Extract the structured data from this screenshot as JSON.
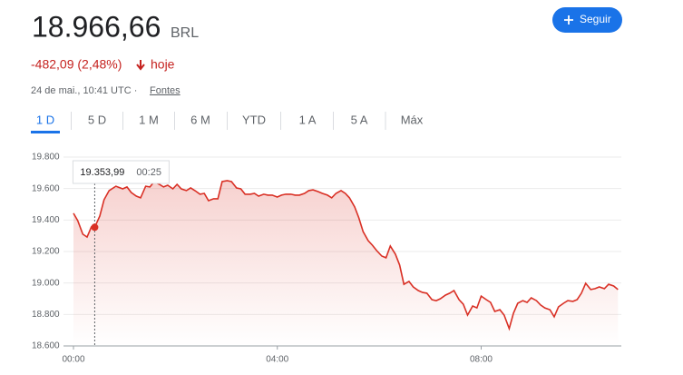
{
  "header": {
    "price": "18.966,66",
    "currency": "BRL",
    "change": "-482,09 (2,48%)",
    "period": "hoje",
    "timestamp": "24 de mai., 10:41 UTC ·",
    "sources": "Fontes",
    "follow": "Seguir"
  },
  "ranges": {
    "items": [
      "1 D",
      "5 D",
      "1 M",
      "6 M",
      "YTD",
      "1 A",
      "5 A",
      "Máx"
    ],
    "selected": "1 D"
  },
  "chart_data": {
    "type": "line",
    "x": [
      0,
      5,
      11,
      16,
      21,
      25,
      31,
      36,
      42,
      50,
      58,
      63,
      68,
      74,
      79,
      85,
      90,
      95,
      101,
      106,
      111,
      117,
      122,
      127,
      133,
      138,
      143,
      149,
      154,
      159,
      165,
      170,
      175,
      181,
      186,
      192,
      197,
      202,
      208,
      213,
      218,
      224,
      229,
      234,
      240,
      245,
      250,
      256,
      261,
      266,
      272,
      277,
      282,
      288,
      293,
      299,
      304,
      309,
      315,
      320,
      325,
      331,
      336,
      341,
      347,
      352,
      357,
      363,
      368,
      373,
      379,
      384,
      389,
      395,
      400,
      406,
      411,
      416,
      422,
      427,
      432,
      438,
      443,
      448,
      454,
      459,
      464,
      470,
      475,
      480,
      486,
      491,
      496,
      502,
      507,
      513,
      518,
      523,
      529,
      534,
      539,
      545,
      550,
      555,
      561,
      566,
      571,
      577,
      582,
      588,
      593,
      598,
      603,
      609,
      614,
      619,
      625,
      630,
      636,
      641
    ],
    "series": [
      {
        "name": "BRL",
        "color": "#d93025",
        "values": [
          19443,
          19396,
          19310,
          19292,
          19356,
          19353.99,
          19425,
          19529,
          19587,
          19615,
          19598,
          19610,
          19575,
          19552,
          19541,
          19615,
          19610,
          19644,
          19627,
          19610,
          19621,
          19598,
          19627,
          19598,
          19587,
          19604,
          19587,
          19564,
          19569,
          19523,
          19535,
          19535,
          19644,
          19650,
          19644,
          19604,
          19598,
          19564,
          19564,
          19569,
          19552,
          19564,
          19558,
          19558,
          19546,
          19558,
          19564,
          19564,
          19558,
          19558,
          19569,
          19587,
          19592,
          19581,
          19569,
          19558,
          19541,
          19569,
          19587,
          19569,
          19541,
          19483,
          19414,
          19327,
          19269,
          19240,
          19206,
          19171,
          19160,
          19235,
          19183,
          19114,
          18992,
          19010,
          18975,
          18952,
          18940,
          18935,
          18894,
          18888,
          18900,
          18923,
          18935,
          18952,
          18894,
          18865,
          18796,
          18854,
          18842,
          18917,
          18894,
          18877,
          18819,
          18830,
          18796,
          18710,
          18808,
          18871,
          18888,
          18877,
          18906,
          18888,
          18860,
          18842,
          18830,
          18785,
          18848,
          18871,
          18888,
          18883,
          18894,
          18935,
          18998,
          18958,
          18964,
          18975,
          18964,
          18992,
          18981,
          18958
        ]
      }
    ],
    "xlim": [
      0,
      645
    ],
    "xticks": [
      {
        "value": 0,
        "label": "00:00"
      },
      {
        "value": 240,
        "label": "04:00"
      },
      {
        "value": 480,
        "label": "08:00"
      }
    ],
    "ylim": [
      18600,
      19800
    ],
    "yticks": [
      {
        "value": 18600,
        "label": "18.600"
      },
      {
        "value": 18800,
        "label": "18.800"
      },
      {
        "value": 19000,
        "label": "19.000"
      },
      {
        "value": 19200,
        "label": "19.200"
      },
      {
        "value": 19400,
        "label": "19.400"
      },
      {
        "value": 19600,
        "label": "19.600"
      },
      {
        "value": 19800,
        "label": "19.800"
      }
    ],
    "grid": true,
    "tooltip": {
      "x": 25,
      "value": 19353.99,
      "label": "19.353,99",
      "time": "00:25"
    }
  }
}
